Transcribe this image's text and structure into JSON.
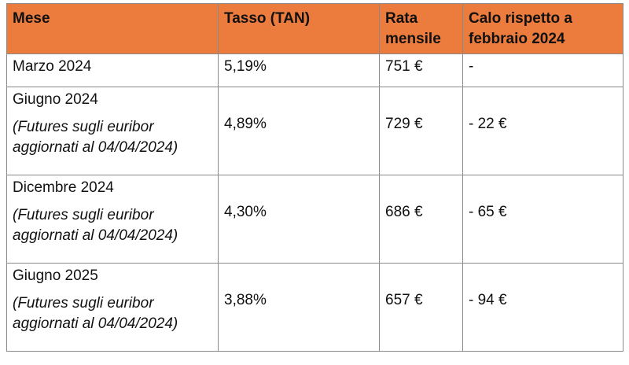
{
  "table": {
    "headers": [
      "Mese",
      "Tasso (TAN)",
      "Rata mensile",
      "Calo rispetto a febbraio 2024"
    ],
    "rows": [
      {
        "mese": "Marzo 2024",
        "note": "",
        "tasso": "5,19%",
        "rata": "751 €",
        "calo": "-"
      },
      {
        "mese": "Giugno 2024",
        "note": "(Futures sugli euribor aggiornati al 04/04/2024)",
        "tasso": "4,89%",
        "rata": "729 €",
        "calo": "- 22 €"
      },
      {
        "mese": "Dicembre 2024",
        "note": "(Futures sugli euribor aggiornati al 04/04/2024)",
        "tasso": "4,30%",
        "rata": "686 €",
        "calo": "- 65 €"
      },
      {
        "mese": "Giugno 2025",
        "note": "(Futures sugli euribor aggiornati al 04/04/2024)",
        "tasso": "3,88%",
        "rata": "657 €",
        "calo": "- 94 €"
      }
    ]
  },
  "colors": {
    "header_bg": "#ec7b3e",
    "border": "#8a8a8a"
  }
}
